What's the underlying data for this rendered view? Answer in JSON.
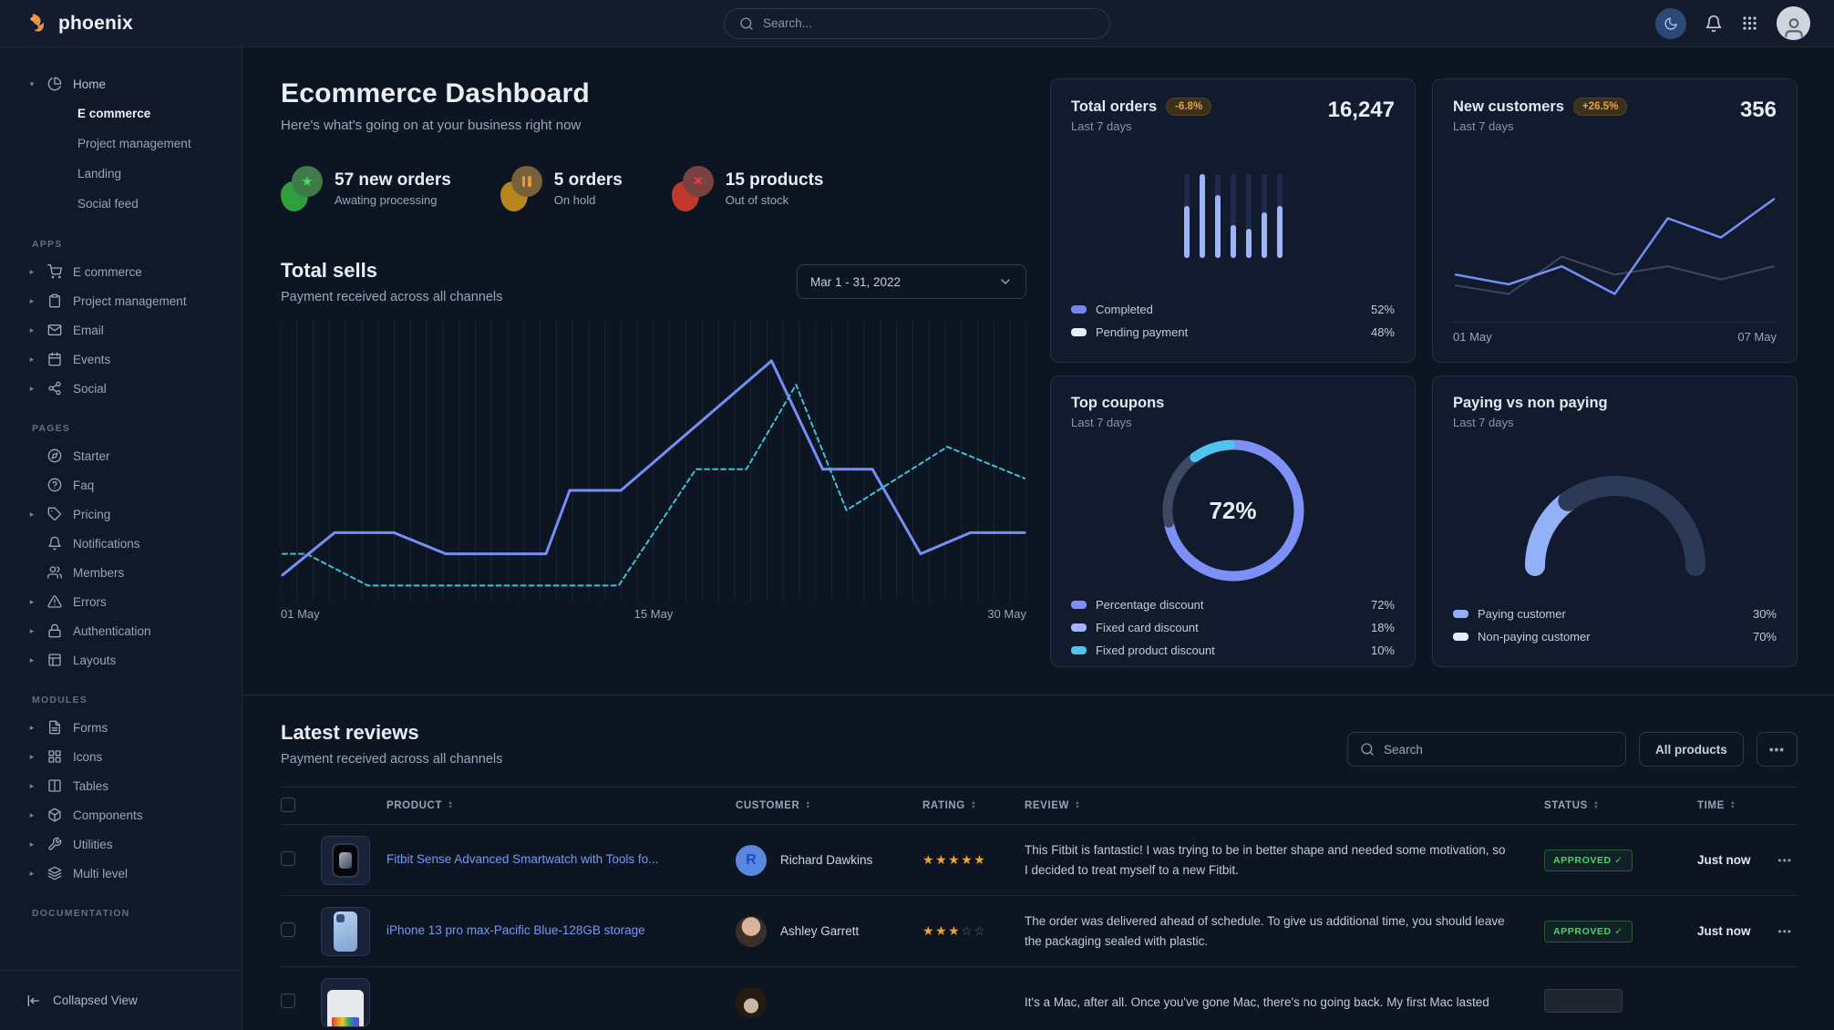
{
  "navbar": {
    "brand": "phoenix",
    "search_placeholder": "Search...",
    "icons": [
      "moon-icon",
      "bell-icon",
      "apps-grid-icon",
      "avatar"
    ]
  },
  "sidebar": {
    "home": {
      "label": "Home",
      "icon": "pie-chart",
      "items": [
        {
          "label": "E commerce",
          "active": true
        },
        {
          "label": "Project management",
          "active": false
        },
        {
          "label": "Landing",
          "active": false
        },
        {
          "label": "Social feed",
          "active": false
        }
      ]
    },
    "sections": [
      {
        "title": "APPS",
        "items": [
          {
            "label": "E commerce",
            "icon": "shopping-cart"
          },
          {
            "label": "Project management",
            "icon": "clipboard"
          },
          {
            "label": "Email",
            "icon": "mail"
          },
          {
            "label": "Events",
            "icon": "calendar"
          },
          {
            "label": "Social",
            "icon": "share"
          }
        ]
      },
      {
        "title": "PAGES",
        "items": [
          {
            "label": "Starter",
            "icon": "compass"
          },
          {
            "label": "Faq",
            "icon": "help-circle"
          },
          {
            "label": "Pricing",
            "icon": "tag"
          },
          {
            "label": "Notifications",
            "icon": "bell"
          },
          {
            "label": "Members",
            "icon": "users"
          },
          {
            "label": "Errors",
            "icon": "alert-triangle"
          },
          {
            "label": "Authentication",
            "icon": "lock"
          },
          {
            "label": "Layouts",
            "icon": "layout"
          }
        ]
      },
      {
        "title": "MODULES",
        "items": [
          {
            "label": "Forms",
            "icon": "file-text"
          },
          {
            "label": "Icons",
            "icon": "grid"
          },
          {
            "label": "Tables",
            "icon": "columns"
          },
          {
            "label": "Components",
            "icon": "package"
          },
          {
            "label": "Utilities",
            "icon": "wrench"
          },
          {
            "label": "Multi level",
            "icon": "layers"
          }
        ]
      },
      {
        "title": "DOCUMENTATION",
        "items": []
      }
    ],
    "footer": {
      "label": "Collapsed View",
      "icon": "collapse-left-icon"
    }
  },
  "header": {
    "title": "Ecommerce Dashboard",
    "subtitle": "Here's what's going on at your business right now"
  },
  "stats": [
    {
      "value": "57 new orders",
      "caption": "Awating processing",
      "icon": "star-icon",
      "color": "#3fe065"
    },
    {
      "value": "5 orders",
      "caption": "On hold",
      "icon": "pause-icon",
      "color": "#f0952f"
    },
    {
      "value": "15 products",
      "caption": "Out of stock",
      "icon": "x-icon",
      "color": "#e8434a"
    }
  ],
  "total_sells": {
    "title": "Total sells",
    "subtitle": "Payment received across all channels",
    "date_range": "Mar 1 - 31, 2022",
    "x_ticks": [
      "01 May",
      "15 May",
      "30 May"
    ]
  },
  "cards": {
    "total_orders": {
      "title": "Total orders",
      "badge": "-6.8%",
      "period": "Last 7 days",
      "value": "16,247",
      "legend": [
        {
          "label": "Completed",
          "value": "52%",
          "swatch": "#7287ec"
        },
        {
          "label": "Pending payment",
          "value": "48%",
          "swatch": "#e4ecfb"
        }
      ]
    },
    "new_customers": {
      "title": "New customers",
      "badge": "+26.5%",
      "period": "Last 7 days",
      "value": "356",
      "x_ticks": [
        "01 May",
        "07 May"
      ]
    },
    "top_coupons": {
      "title": "Top coupons",
      "period": "Last 7 days",
      "center_label": "72%",
      "legend": [
        {
          "label": "Percentage discount",
          "value": "72%",
          "swatch": "#7d90f8"
        },
        {
          "label": "Fixed card discount",
          "value": "18%",
          "swatch": "#a3b2fa"
        },
        {
          "label": "Fixed product discount",
          "value": "10%",
          "swatch": "#51c3f0"
        }
      ]
    },
    "paying": {
      "title": "Paying vs non paying",
      "period": "Last 7 days",
      "legend": [
        {
          "label": "Paying customer",
          "value": "30%",
          "swatch": "#8fb0f9"
        },
        {
          "label": "Non-paying customer",
          "value": "70%",
          "swatch": "#e4ecfb"
        }
      ]
    }
  },
  "reviews": {
    "title": "Latest reviews",
    "subtitle": "Payment received across all channels",
    "search_placeholder": "Search",
    "filter_button": "All products",
    "more_dots": "•••",
    "columns": [
      "PRODUCT",
      "CUSTOMER",
      "RATING",
      "REVIEW",
      "STATUS",
      "TIME"
    ],
    "rows": [
      {
        "product": "Fitbit Sense Advanced Smartwatch with Tools fo...",
        "customer": "Richard Dawkins",
        "avatar_initial": "R",
        "rating": 5,
        "review": "This Fitbit is fantastic! I was trying to be in better shape and needed some motivation, so I decided to treat myself to a new Fitbit.",
        "status": "APPROVED",
        "time": "Just now"
      },
      {
        "product": "iPhone 13 pro max-Pacific Blue-128GB storage",
        "customer": "Ashley Garrett",
        "rating": 3,
        "review": "The order was delivered ahead of schedule. To give us additional time, you should leave the packaging sealed with plastic.",
        "status": "APPROVED",
        "time": "Just now"
      },
      {
        "review": "It's a Mac, after all. Once you've gone Mac, there's no going back. My first Mac lasted"
      }
    ]
  },
  "chart_data": {
    "total_sells": {
      "type": "line",
      "gridlines": 46,
      "x_ticks": [
        "01 May",
        "15 May",
        "30 May"
      ],
      "series": [
        {
          "name": "previous period",
          "color": "#3ec1d6",
          "width": 2,
          "dash": "5 4",
          "points": [
            [
              0,
              16
            ],
            [
              3.2,
              16
            ],
            [
              11.5,
              4
            ],
            [
              45.3,
              4
            ],
            [
              55.7,
              48
            ],
            [
              62.5,
              48
            ],
            [
              69.2,
              80
            ],
            [
              76,
              32.5
            ],
            [
              89.6,
              56.5
            ],
            [
              100,
              44.5
            ]
          ]
        },
        {
          "name": "payment",
          "color": "#7590f5",
          "width": 3,
          "dash": null,
          "points": [
            [
              0,
              8
            ],
            [
              7,
              24
            ],
            [
              15,
              24
            ],
            [
              22,
              16
            ],
            [
              35.5,
              16
            ],
            [
              38.7,
              40
            ],
            [
              45.6,
              40
            ],
            [
              65.9,
              89
            ],
            [
              72.8,
              48
            ],
            [
              79.5,
              48
            ],
            [
              86,
              16
            ],
            [
              92.7,
              24
            ],
            [
              100,
              24
            ]
          ]
        }
      ]
    },
    "total_orders": {
      "type": "bar",
      "bars_completed_pct": [
        61,
        100,
        74,
        39,
        34,
        54,
        61
      ],
      "fill_color": "#9db5f6",
      "track_color": "#1f2b49"
    },
    "new_customers": {
      "type": "line",
      "series": [
        {
          "name": "previous",
          "color": "#3c485f",
          "width": 2,
          "values": [
            24,
            17,
            48,
            33,
            40,
            29,
            40
          ]
        },
        {
          "name": "current",
          "color": "#7590f5",
          "width": 2.5,
          "values": [
            33,
            25,
            40,
            17,
            80,
            64,
            96
          ]
        }
      ]
    },
    "top_coupons": {
      "type": "donut",
      "center_label": "72%",
      "segments": [
        {
          "label": "Percentage discount",
          "value": 72,
          "color": "#7d90f8"
        },
        {
          "label": "Fixed card discount",
          "value": 18,
          "color": "#3d4961"
        },
        {
          "label": "Fixed product discount",
          "value": 10,
          "color": "#51c3f0"
        }
      ]
    },
    "paying_vs_non_paying": {
      "type": "gauge",
      "segments": [
        {
          "label": "Paying customer",
          "value": 30,
          "color": "#92b1f8"
        },
        {
          "label": "Non-paying customer",
          "value": 70,
          "color": "#2c3a57"
        }
      ]
    }
  }
}
